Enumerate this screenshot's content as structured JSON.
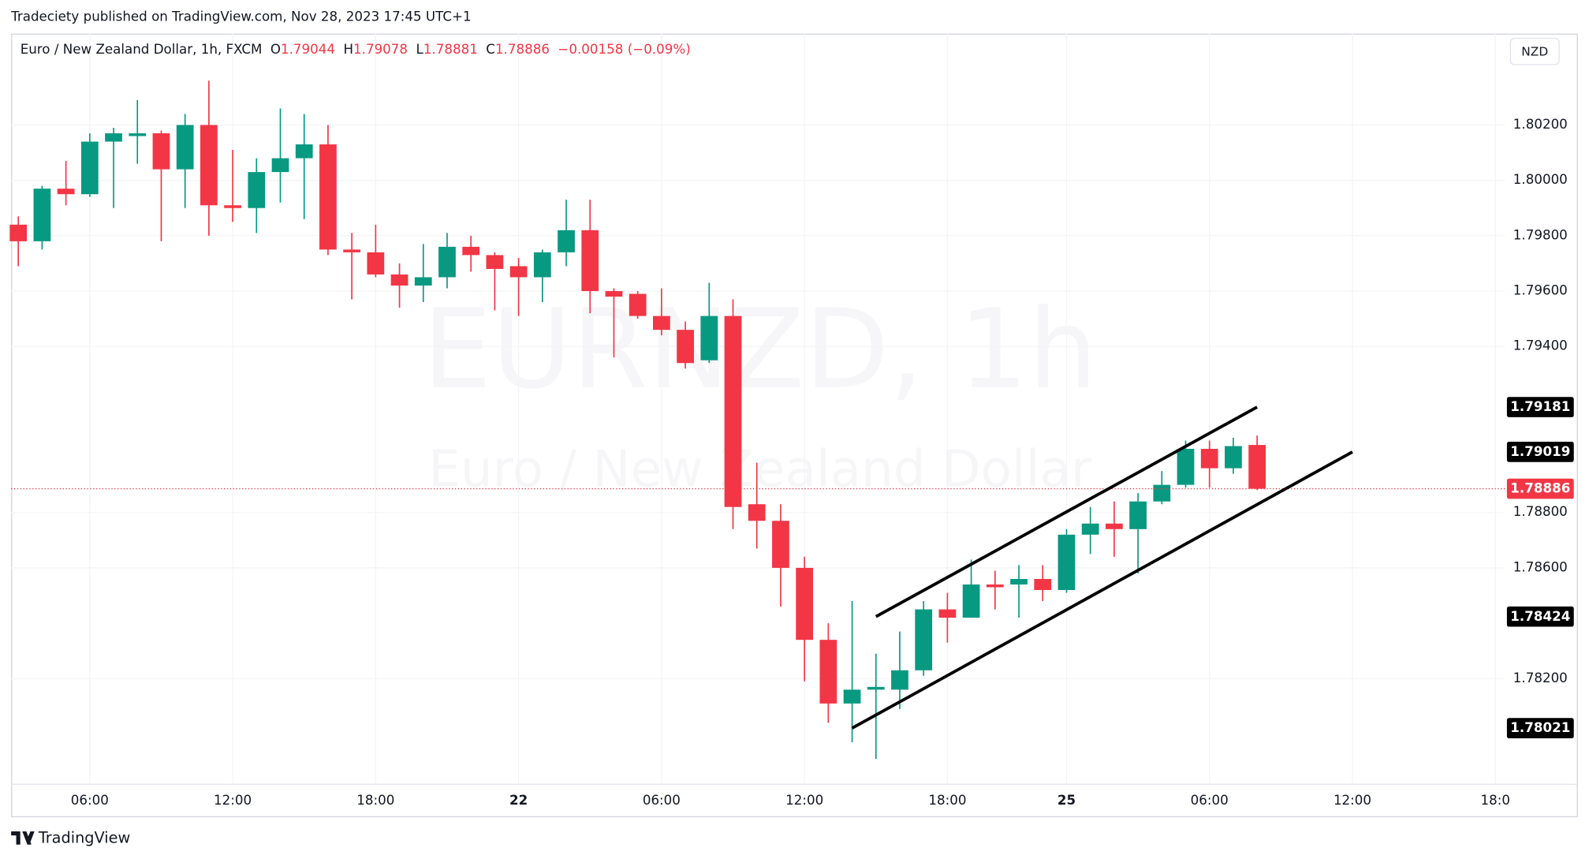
{
  "publisher_line": "Tradeciety published on TradingView.com, Nov 28, 2023 17:45 UTC+1",
  "currency_button": "NZD",
  "brand": "TradingView",
  "chart_data": {
    "type": "candlestick",
    "title": "Euro / New Zealand Dollar, 1h, FXCM",
    "ohlc_labels": [
      "O",
      "H",
      "L",
      "C"
    ],
    "change_label": "−0.00158 (−0.09%)",
    "watermark": [
      "EURNZD, 1h",
      "Euro / New Zealand Dollar"
    ],
    "up_color": "#089981",
    "down_color": "#f23645",
    "open": [
      1.7984,
      1.7978,
      1.7997,
      1.7995,
      1.8014,
      1.8016,
      1.8017,
      1.8004,
      1.802,
      1.7991,
      1.799,
      1.8003,
      1.8008,
      1.8013,
      1.7975,
      1.7974,
      1.7966,
      1.7962,
      1.7965,
      1.7976,
      1.7973,
      1.7969,
      1.7965,
      1.7974,
      1.7982,
      1.796,
      1.7959,
      1.7951,
      1.7946,
      1.7935,
      1.7951,
      1.7883,
      1.7877,
      1.786,
      1.7834,
      1.7811,
      1.7816,
      1.7816,
      1.7823,
      1.7845,
      1.7842,
      1.7854,
      1.7854,
      1.7856,
      1.7852,
      1.7872,
      1.7876,
      1.7874,
      1.7884,
      1.789,
      1.7903,
      1.7896,
      1.79044
    ],
    "high": [
      1.7987,
      1.7998,
      1.8007,
      1.8017,
      1.8019,
      1.8029,
      1.8018,
      1.8024,
      1.8036,
      1.8011,
      1.8008,
      1.8026,
      1.8024,
      1.802,
      1.7981,
      1.7984,
      1.797,
      1.7977,
      1.7981,
      1.798,
      1.7974,
      1.7972,
      1.7975,
      1.7993,
      1.7993,
      1.7961,
      1.796,
      1.7961,
      1.7949,
      1.7963,
      1.7957,
      1.7898,
      1.7883,
      1.7864,
      1.784,
      1.7848,
      1.7829,
      1.7837,
      1.7848,
      1.7851,
      1.7863,
      1.7859,
      1.7861,
      1.7861,
      1.7874,
      1.7882,
      1.7884,
      1.7887,
      1.7895,
      1.7906,
      1.7906,
      1.7907,
      1.79078
    ],
    "low": [
      1.7969,
      1.7975,
      1.7991,
      1.7994,
      1.799,
      1.8006,
      1.7978,
      1.799,
      1.798,
      1.7985,
      1.7981,
      1.7992,
      1.7986,
      1.7973,
      1.7957,
      1.7965,
      1.7954,
      1.7956,
      1.7961,
      1.7967,
      1.7953,
      1.7951,
      1.7956,
      1.7969,
      1.7952,
      1.7936,
      1.795,
      1.7944,
      1.7932,
      1.7934,
      1.7874,
      1.7867,
      1.7846,
      1.7819,
      1.7804,
      1.7797,
      1.7791,
      1.7809,
      1.7821,
      1.7833,
      1.7842,
      1.7845,
      1.7842,
      1.7848,
      1.7851,
      1.7865,
      1.7864,
      1.7858,
      1.7883,
      1.7889,
      1.7889,
      1.7894,
      1.78881
    ],
    "close": [
      1.7978,
      1.7997,
      1.7995,
      1.8014,
      1.8017,
      1.8017,
      1.8004,
      1.802,
      1.7991,
      1.799,
      1.8003,
      1.8008,
      1.8013,
      1.7975,
      1.7974,
      1.7966,
      1.7962,
      1.7965,
      1.7976,
      1.7973,
      1.7968,
      1.7965,
      1.7974,
      1.7982,
      1.796,
      1.7958,
      1.7951,
      1.7946,
      1.7934,
      1.7951,
      1.7882,
      1.7877,
      1.786,
      1.7834,
      1.7811,
      1.7816,
      1.7817,
      1.7823,
      1.7845,
      1.7842,
      1.7854,
      1.7853,
      1.7856,
      1.7852,
      1.7872,
      1.7876,
      1.7874,
      1.7884,
      1.789,
      1.7903,
      1.7896,
      1.7904,
      1.78886
    ],
    "ylim": [
      1.7782,
      1.8053
    ],
    "yticks": [
      {
        "value": 1.802,
        "label": "1.80200"
      },
      {
        "value": 1.8,
        "label": "1.80000"
      },
      {
        "value": 1.798,
        "label": "1.79800"
      },
      {
        "value": 1.796,
        "label": "1.79600"
      },
      {
        "value": 1.794,
        "label": "1.79400"
      },
      {
        "value": 1.788,
        "label": "1.78800"
      },
      {
        "value": 1.786,
        "label": "1.78600"
      },
      {
        "value": 1.782,
        "label": "1.78200"
      }
    ],
    "xlim": [
      -0.3,
      62.4
    ],
    "xticks": [
      {
        "value": 3,
        "label": "06:00"
      },
      {
        "value": 9,
        "label": "12:00"
      },
      {
        "value": 15,
        "label": "18:00"
      },
      {
        "value": 21,
        "label": "22"
      },
      {
        "value": 27,
        "label": "06:00"
      },
      {
        "value": 33,
        "label": "12:00"
      },
      {
        "value": 39,
        "label": "18:00"
      },
      {
        "value": 44,
        "label": "25"
      },
      {
        "value": 50,
        "label": "06:00"
      },
      {
        "value": 56,
        "label": "12:00"
      },
      {
        "value": 62,
        "label": "18:0"
      }
    ],
    "channel_lines": [
      {
        "start": 1.78424,
        "end": 1.79181
      },
      {
        "start": 1.78021,
        "end": 1.79019
      }
    ],
    "grid": true
  }
}
